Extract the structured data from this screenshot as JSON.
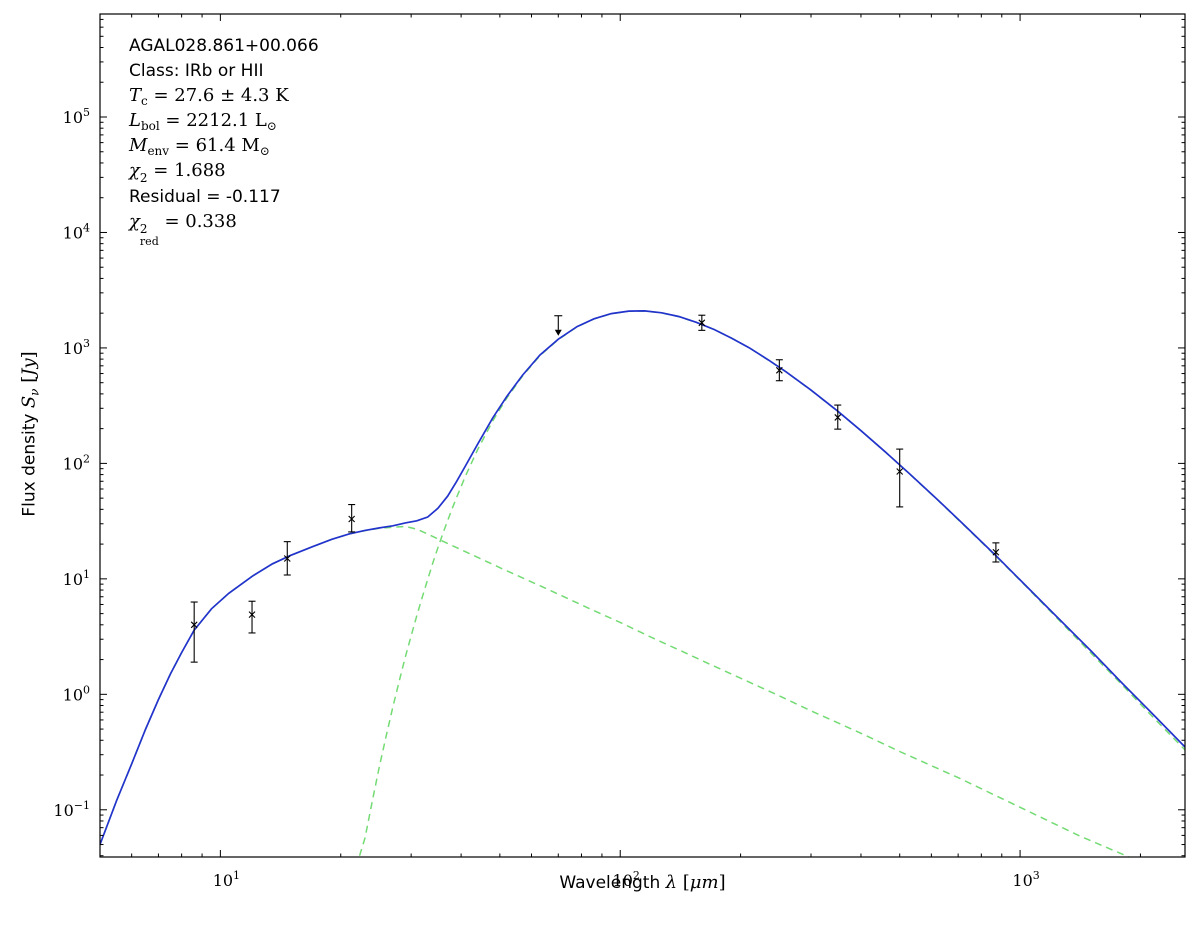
{
  "figure": {
    "background": "#ffffff",
    "annotation": {
      "lines": [
        {
          "name": "source-name",
          "segments": [
            {
              "t": "AGAL028.861+00.066",
              "f": "sans"
            }
          ]
        },
        {
          "name": "source-class",
          "segments": [
            {
              "t": "Class: IRb or HII",
              "f": "sans"
            }
          ]
        },
        {
          "name": "dust-temperature",
          "segments": [
            {
              "t": "T",
              "f": "math"
            },
            {
              "t": "c",
              "f": "subrm"
            },
            {
              "t": " = 27.6 ± 4.3 K",
              "f": "rm"
            }
          ]
        },
        {
          "name": "bolometric-luminosity",
          "segments": [
            {
              "t": "L",
              "f": "math"
            },
            {
              "t": "bol",
              "f": "subrm"
            },
            {
              "t": " = 2212.1 L",
              "f": "rm"
            },
            {
              "t": "⊙",
              "f": "subrm"
            }
          ]
        },
        {
          "name": "envelope-mass",
          "segments": [
            {
              "t": "M",
              "f": "math"
            },
            {
              "t": "env",
              "f": "subrm"
            },
            {
              "t": " = 61.4 M",
              "f": "rm"
            },
            {
              "t": "⊙",
              "f": "subrm"
            }
          ]
        },
        {
          "name": "chi-square",
          "segments": [
            {
              "t": "χ",
              "f": "math"
            },
            {
              "sup": "2",
              "sub": ""
            },
            {
              "t": " = 1.688",
              "f": "rm"
            }
          ]
        },
        {
          "name": "residual",
          "segments": [
            {
              "t": "Residual = -0.117",
              "f": "sans"
            }
          ]
        },
        {
          "name": "chi-square-reduced",
          "segments": [
            {
              "t": "χ",
              "f": "math"
            },
            {
              "sup": "2",
              "sub": "red"
            },
            {
              "t": " = 0.338",
              "f": "rm"
            }
          ]
        }
      ]
    },
    "x_axis_label_segments": [
      {
        "t": "Wavelength ",
        "f": "sans"
      },
      {
        "t": "λ",
        "f": "math"
      },
      {
        "t": " [",
        "f": "rm"
      },
      {
        "t": "μm",
        "f": "math"
      },
      {
        "t": "]",
        "f": "rm"
      }
    ],
    "y_axis_label_segments": [
      {
        "t": "Flux density ",
        "f": "sans"
      },
      {
        "t": "S",
        "f": "math"
      },
      {
        "t": "ν",
        "f": "sub"
      },
      {
        "t": " [",
        "f": "rm"
      },
      {
        "t": "Jy",
        "f": "math"
      },
      {
        "t": "]",
        "f": "rm"
      }
    ]
  },
  "chart_data": {
    "type": "line",
    "title": "",
    "xlabel": "Wavelength λ [μm]",
    "ylabel": "Flux density S_ν [Jy]",
    "x_scale": "log",
    "y_scale": "log",
    "xlim": [
      5,
      2585
    ],
    "ylim": [
      0.039,
      780000
    ],
    "x_ticks": [
      10,
      100,
      1000
    ],
    "y_ticks": [
      0.1,
      1,
      10,
      100,
      1000,
      10000,
      100000
    ],
    "grid": false,
    "legend": "none",
    "colors": {
      "total_model": "#2233cc",
      "components": "#74db74",
      "data": "#000000",
      "frame": "#000000"
    },
    "series": [
      {
        "name": "warm-component",
        "style": "dashed",
        "color": "#74db74",
        "x": [
          5,
          5.5,
          6,
          6.5,
          7,
          7.5,
          8,
          8.6,
          9.5,
          10.5,
          12,
          13.5,
          15,
          17,
          19,
          21,
          23,
          25,
          27,
          29,
          31,
          33,
          36,
          40,
          45,
          50,
          57,
          65,
          75,
          85,
          100,
          120,
          140,
          170,
          200,
          250,
          300,
          400,
          500,
          700,
          1000,
          1400,
          1870
        ],
        "y": [
          0.05,
          0.12,
          0.25,
          0.5,
          0.9,
          1.5,
          2.3,
          3.6,
          5.5,
          7.5,
          10.5,
          13.5,
          16,
          19,
          22,
          24.5,
          26.2,
          27.4,
          28.0,
          28.4,
          27.0,
          24.4,
          21.2,
          17.9,
          14.8,
          12.5,
          10.2,
          8.3,
          6.6,
          5.4,
          4.2,
          3.1,
          2.43,
          1.78,
          1.38,
          0.97,
          0.72,
          0.46,
          0.32,
          0.19,
          0.105,
          0.06,
          0.039
        ]
      },
      {
        "name": "cold-component",
        "style": "dashed",
        "color": "#74db74",
        "x": [
          22.3,
          23,
          24,
          25,
          26,
          27,
          28,
          29,
          30,
          31,
          32,
          33,
          34,
          35,
          36,
          37,
          38,
          39,
          41,
          44,
          48,
          52,
          57,
          63,
          70,
          78,
          86,
          95,
          105,
          115,
          127,
          140,
          155,
          172,
          190,
          210,
          235,
          260,
          300,
          350,
          400,
          460,
          530,
          620,
          720,
          870,
          1000,
          1200,
          1500,
          1800,
          2100,
          2585
        ],
        "y": [
          0.04,
          0.057,
          0.12,
          0.24,
          0.44,
          0.78,
          1.3,
          2.1,
          3.2,
          4.8,
          7.0,
          9.9,
          13.8,
          18.6,
          24.6,
          31.9,
          40.7,
          51,
          77.5,
          132,
          234,
          367,
          572,
          859,
          1183,
          1524,
          1783,
          1978,
          2079,
          2090,
          2010,
          1868,
          1665,
          1440,
          1214,
          1003,
          783,
          619,
          430,
          282,
          192,
          126,
          80.6,
          48.7,
          29.7,
          15.7,
          9.7,
          5.1,
          2.3,
          1.21,
          0.69,
          0.33
        ]
      },
      {
        "name": "total-model",
        "style": "solid",
        "color": "#2233cc",
        "x": [
          5,
          5.5,
          6,
          6.5,
          7,
          7.5,
          8,
          8.6,
          9.5,
          10.5,
          12,
          13.5,
          15,
          17,
          19,
          21,
          23,
          25,
          27,
          29,
          31,
          33,
          35,
          37,
          39,
          41,
          44,
          48,
          52,
          57,
          63,
          70,
          78,
          86,
          95,
          105,
          115,
          127,
          140,
          155,
          172,
          190,
          210,
          235,
          260,
          300,
          350,
          400,
          460,
          530,
          620,
          720,
          870,
          1000,
          1200,
          1500,
          1800,
          2100,
          2585
        ],
        "y": [
          0.05,
          0.12,
          0.25,
          0.5,
          0.9,
          1.5,
          2.3,
          3.6,
          5.5,
          7.5,
          10.5,
          13.5,
          16,
          19,
          22,
          24.5,
          26.3,
          27.6,
          28.8,
          30.5,
          31.8,
          34.3,
          40.8,
          52,
          70,
          95,
          147,
          248,
          379,
          582,
          868,
          1190,
          1530,
          1788,
          1982,
          2083,
          2093,
          2013,
          1870,
          1667,
          1442,
          1215,
          1004,
          784,
          620,
          431,
          283,
          192,
          126,
          81,
          49,
          29.9,
          15.9,
          9.8,
          5.2,
          2.4,
          1.25,
          0.73,
          0.35
        ]
      }
    ],
    "points": [
      {
        "x": 8.6,
        "y": 4.0,
        "ylo": 1.9,
        "yhi": 6.3
      },
      {
        "x": 12,
        "y": 4.9,
        "ylo": 3.4,
        "yhi": 6.4
      },
      {
        "x": 14.7,
        "y": 15,
        "ylo": 10.8,
        "yhi": 21
      },
      {
        "x": 21.3,
        "y": 33,
        "ylo": 25.5,
        "yhi": 44
      },
      {
        "x": 70,
        "y": 1900,
        "upper_limit": true
      },
      {
        "x": 160,
        "y": 1650,
        "ylo": 1420,
        "yhi": 1920
      },
      {
        "x": 250,
        "y": 640,
        "ylo": 520,
        "yhi": 790
      },
      {
        "x": 350,
        "y": 250,
        "ylo": 198,
        "yhi": 320
      },
      {
        "x": 500,
        "y": 85,
        "ylo": 42,
        "yhi": 133
      },
      {
        "x": 870,
        "y": 17,
        "ylo": 14,
        "yhi": 20.5
      }
    ],
    "annotations": [
      "AGAL028.861+00.066",
      "Class: IRb or HII",
      "T_c = 27.6 ± 4.3 K",
      "L_bol = 2212.1 L_sun",
      "M_env = 61.4 M_sun",
      "chi^2 = 1.688",
      "Residual = -0.117",
      "chi^2_red = 0.338"
    ]
  }
}
